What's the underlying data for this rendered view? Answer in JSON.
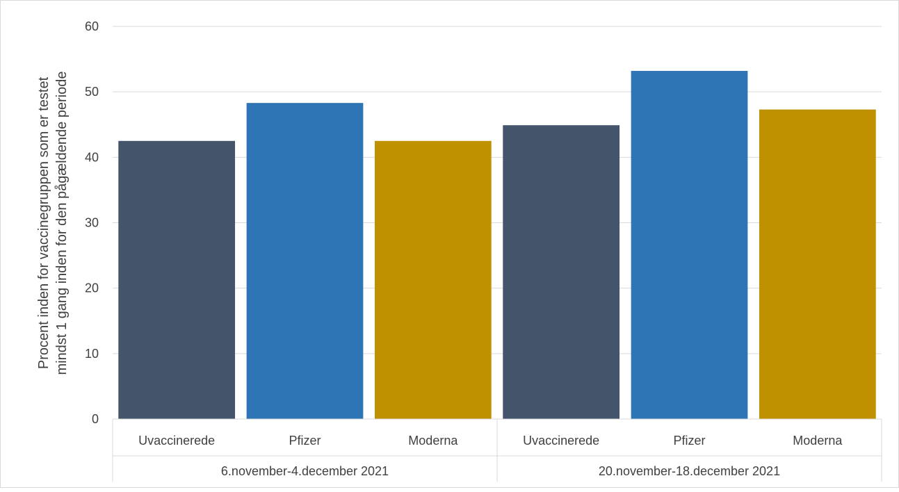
{
  "chart_data": {
    "type": "bar",
    "groups": [
      {
        "label": "6.november-4.december 2021",
        "categories": [
          "Uvaccinerede",
          "Pfizer",
          "Moderna"
        ],
        "values": [
          42.5,
          48.3,
          42.5
        ]
      },
      {
        "label": "20.november-18.december 2021",
        "categories": [
          "Uvaccinerede",
          "Pfizer",
          "Moderna"
        ],
        "values": [
          44.9,
          53.2,
          47.3
        ]
      }
    ],
    "ylabel_lines": [
      "Procent inden for vaccinegruppen som er testet",
      "mindst 1 gang inden for den pågældende periode"
    ],
    "ylim": [
      0,
      60
    ],
    "yticks": [
      "0",
      "10",
      "20",
      "30",
      "40",
      "50",
      "60"
    ],
    "grid": true,
    "bar_colors": {
      "Uvaccinerede": "#44546a",
      "Pfizer": "#2e75b6",
      "Moderna": "#bf9000"
    }
  }
}
